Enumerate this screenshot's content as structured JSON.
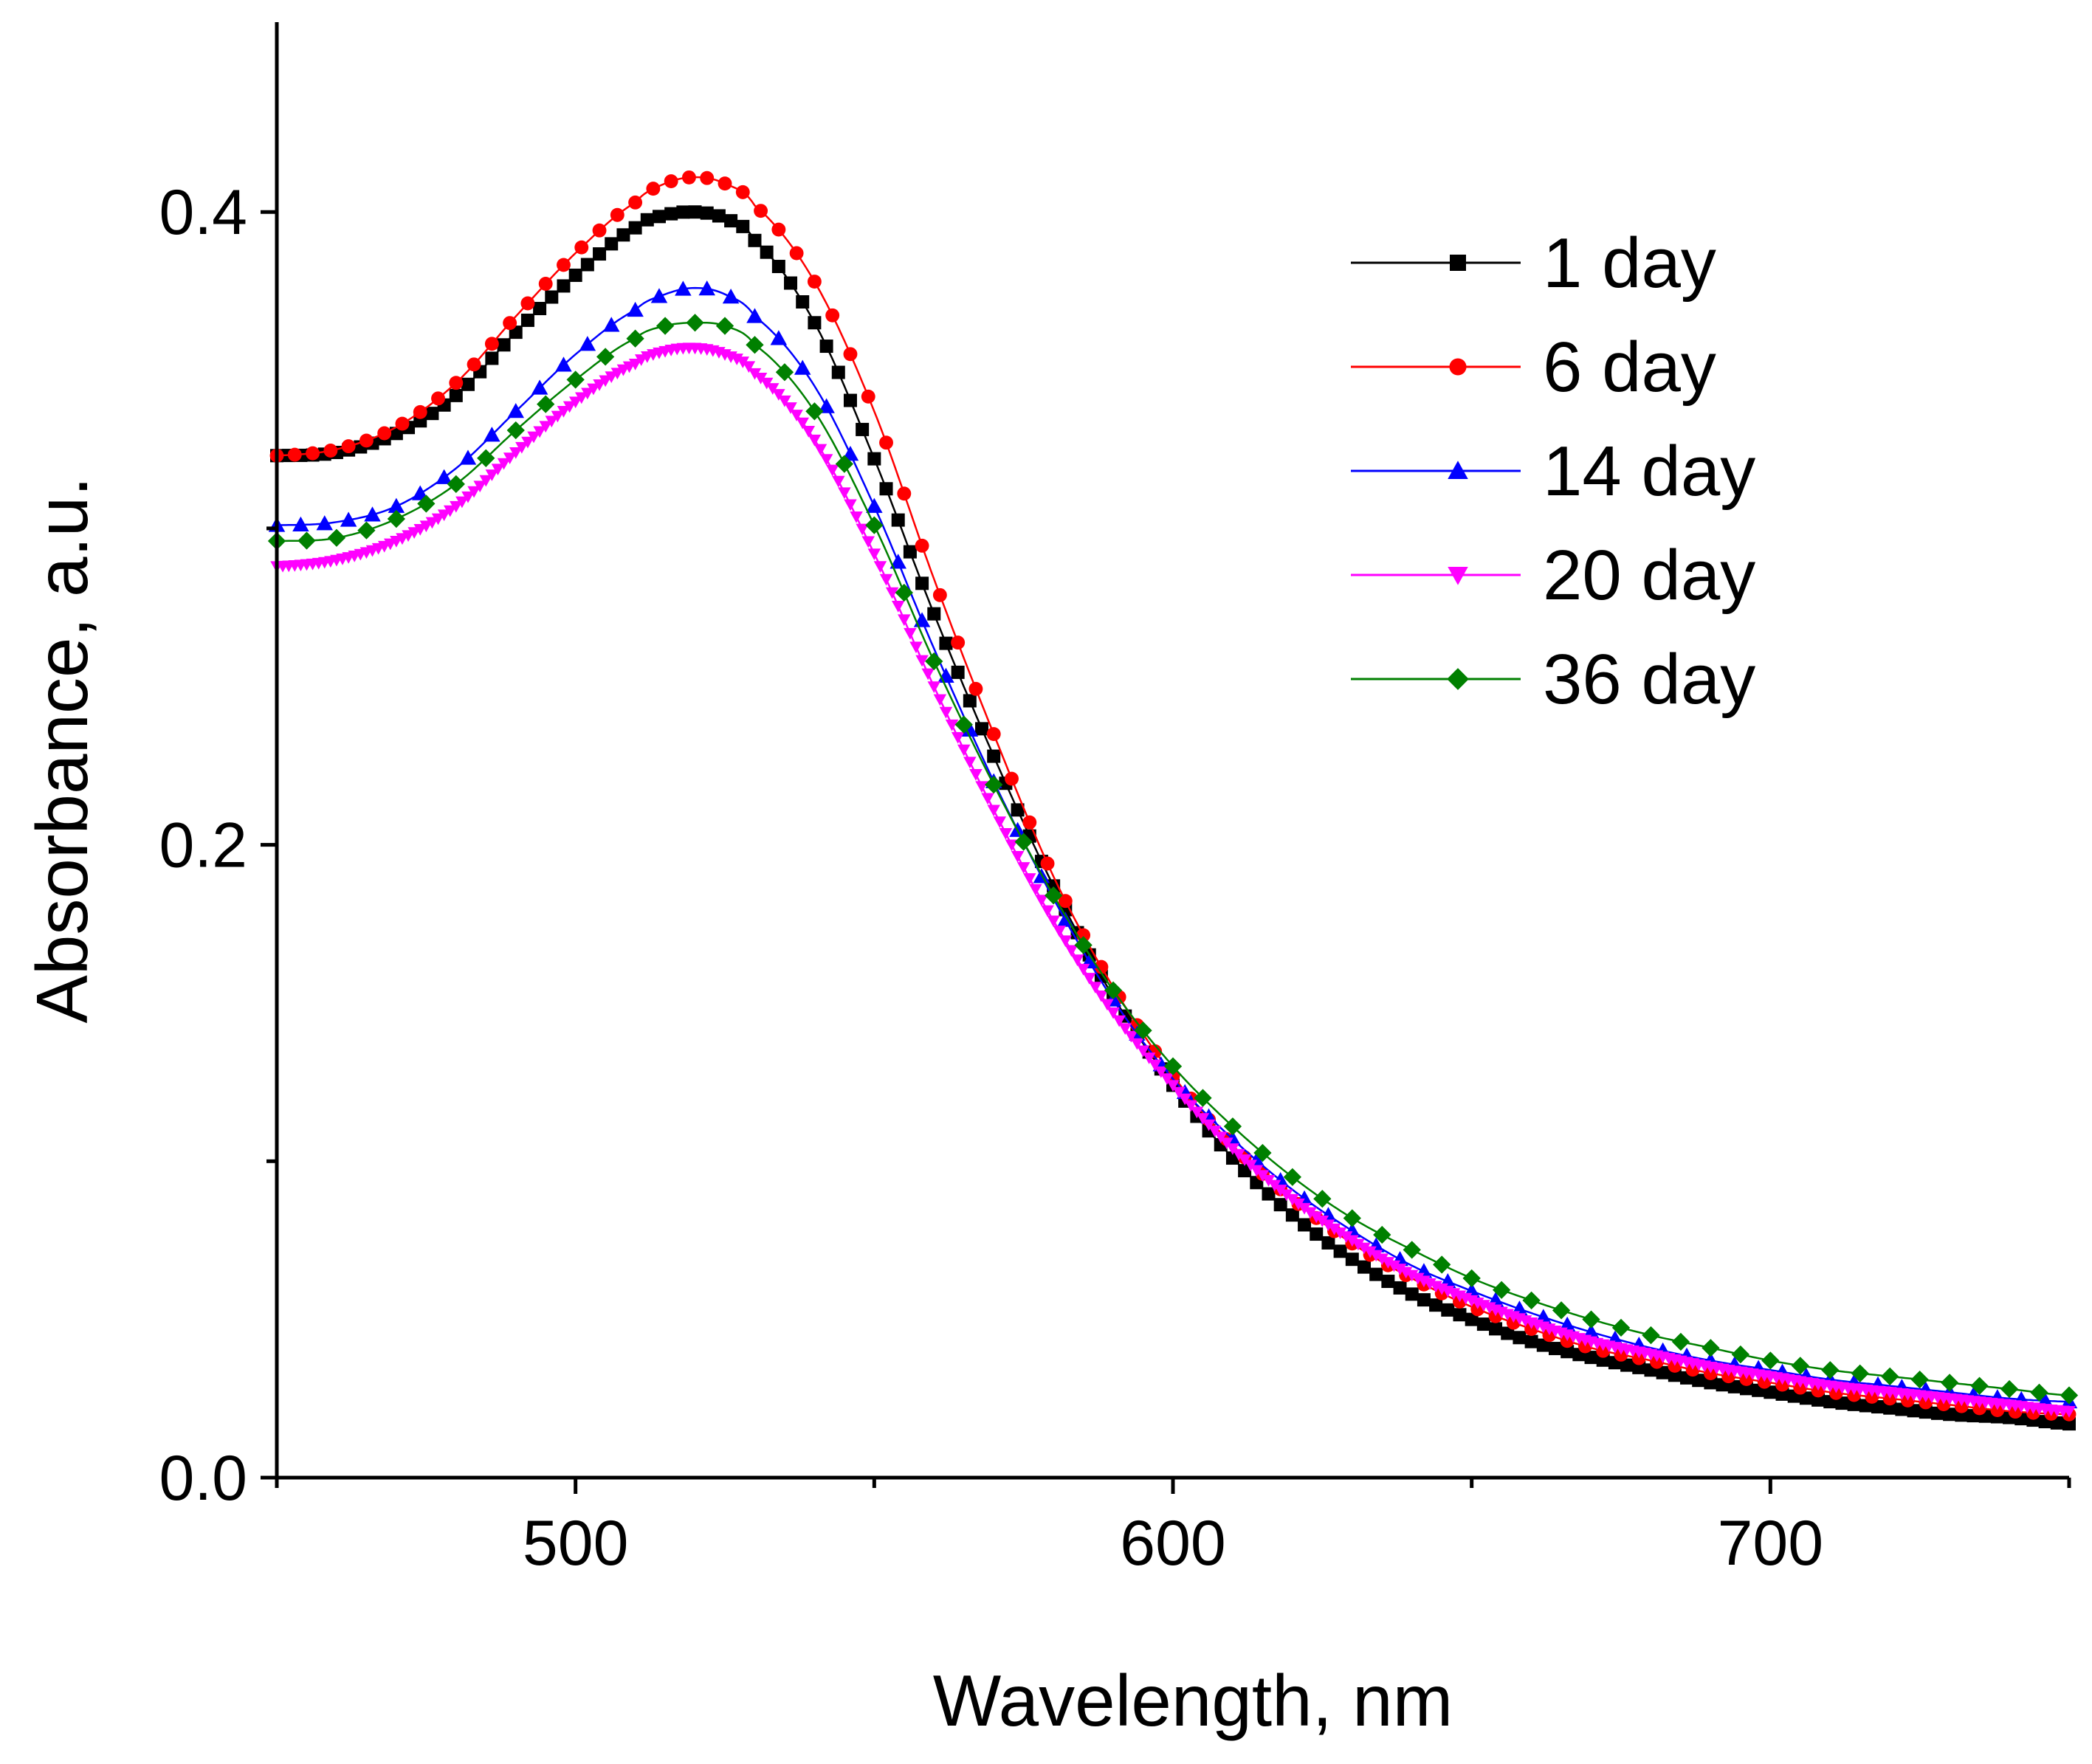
{
  "chart_data": {
    "type": "line",
    "title": "",
    "xlabel": "Wavelength, nm",
    "ylabel": "Absorbance, a.u.",
    "xlim": [
      450,
      750
    ],
    "ylim": [
      0.0,
      0.46
    ],
    "x_ticks": [
      500,
      600,
      700
    ],
    "x_tick_labels": [
      "500",
      "600",
      "700"
    ],
    "x_minor_ticks": [
      450,
      550,
      650,
      750
    ],
    "y_ticks": [
      0.0,
      0.2,
      0.4
    ],
    "y_tick_labels": [
      "0.0",
      "0.2",
      "0.4"
    ],
    "y_minor_ticks": [
      0.1,
      0.3
    ],
    "legend_position": "top-right",
    "x": [
      450,
      460,
      470,
      480,
      490,
      500,
      510,
      515,
      520,
      525,
      530,
      540,
      550,
      560,
      570,
      580,
      590,
      600,
      610,
      620,
      630,
      640,
      650,
      660,
      670,
      680,
      690,
      700,
      710,
      720,
      730,
      740,
      750
    ],
    "series": [
      {
        "name": "1 day",
        "color": "#000000",
        "marker": "square",
        "values": [
          0.323,
          0.324,
          0.33,
          0.342,
          0.362,
          0.38,
          0.395,
          0.399,
          0.4,
          0.398,
          0.391,
          0.365,
          0.322,
          0.273,
          0.228,
          0.187,
          0.152,
          0.124,
          0.101,
          0.083,
          0.069,
          0.058,
          0.05,
          0.043,
          0.038,
          0.034,
          0.03,
          0.027,
          0.024,
          0.022,
          0.02,
          0.019,
          0.017
        ]
      },
      {
        "name": "6 day",
        "color": "#ff0000",
        "marker": "circle",
        "values": [
          0.323,
          0.325,
          0.332,
          0.346,
          0.367,
          0.387,
          0.403,
          0.409,
          0.411,
          0.409,
          0.402,
          0.378,
          0.337,
          0.284,
          0.235,
          0.19,
          0.155,
          0.127,
          0.105,
          0.088,
          0.074,
          0.063,
          0.054,
          0.047,
          0.041,
          0.037,
          0.033,
          0.03,
          0.027,
          0.025,
          0.023,
          0.021,
          0.02
        ]
      },
      {
        "name": "14 day",
        "color": "#0000ff",
        "marker": "triangle-up",
        "values": [
          0.301,
          0.302,
          0.307,
          0.319,
          0.337,
          0.355,
          0.369,
          0.374,
          0.376,
          0.374,
          0.367,
          0.345,
          0.307,
          0.262,
          0.22,
          0.183,
          0.151,
          0.126,
          0.107,
          0.091,
          0.078,
          0.067,
          0.059,
          0.052,
          0.046,
          0.041,
          0.037,
          0.034,
          0.031,
          0.029,
          0.027,
          0.025,
          0.024
        ]
      },
      {
        "name": "20 day",
        "color": "#ff00ff",
        "marker": "triangle-down",
        "values": [
          0.288,
          0.29,
          0.296,
          0.307,
          0.324,
          0.34,
          0.352,
          0.356,
          0.357,
          0.355,
          0.349,
          0.328,
          0.292,
          0.25,
          0.211,
          0.176,
          0.147,
          0.124,
          0.104,
          0.088,
          0.075,
          0.064,
          0.056,
          0.049,
          0.043,
          0.039,
          0.035,
          0.032,
          0.029,
          0.027,
          0.025,
          0.023,
          0.021
        ]
      },
      {
        "name": "36 day",
        "color": "#008000",
        "marker": "diamond",
        "values": [
          0.296,
          0.297,
          0.303,
          0.314,
          0.331,
          0.347,
          0.36,
          0.364,
          0.365,
          0.364,
          0.358,
          0.337,
          0.301,
          0.258,
          0.219,
          0.184,
          0.154,
          0.13,
          0.111,
          0.095,
          0.082,
          0.072,
          0.063,
          0.056,
          0.05,
          0.045,
          0.041,
          0.037,
          0.034,
          0.032,
          0.03,
          0.028,
          0.026
        ]
      }
    ]
  }
}
